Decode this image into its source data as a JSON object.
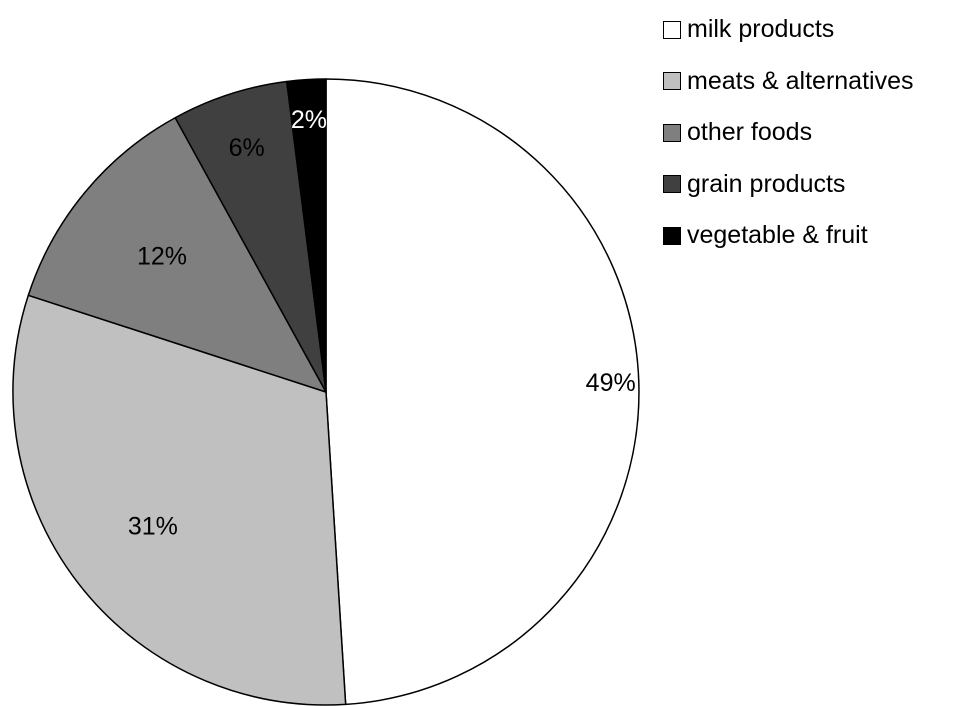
{
  "chart_data": {
    "type": "pie",
    "title": "",
    "start_angle_deg": 0,
    "direction": "clockwise",
    "slices": [
      {
        "name": "milk products",
        "value": 49,
        "label": "49%",
        "color": "#ffffff",
        "label_color": "#000000"
      },
      {
        "name": "meats & alternatives",
        "value": 31,
        "label": "31%",
        "color": "#c0c0c0",
        "label_color": "#000000"
      },
      {
        "name": "other foods",
        "value": 12,
        "label": "12%",
        "color": "#7f7f7f",
        "label_color": "#000000"
      },
      {
        "name": "grain products",
        "value": 6,
        "label": "6%",
        "color": "#404040",
        "label_color": "#000000"
      },
      {
        "name": "vegetable & fruit",
        "value": 2,
        "label": "2%",
        "color": "#000000",
        "label_color": "#ffffff"
      }
    ],
    "legend_position": "top-right"
  }
}
